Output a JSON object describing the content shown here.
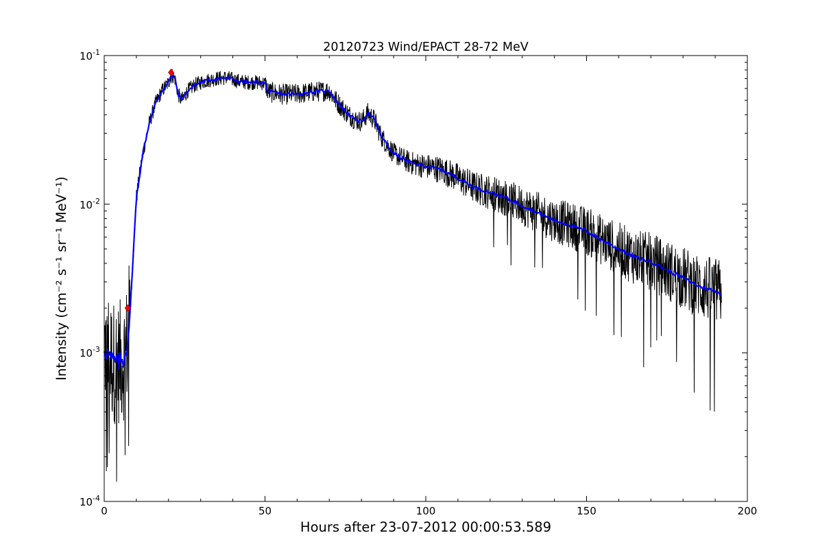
{
  "chart_data": {
    "type": "line",
    "title": "20120723 Wind/EPACT 28-72 MeV",
    "xlabel": "Hours after 23-07-2012 00:00:53.589",
    "ylabel": "Intensity (cm⁻² s⁻¹ sr⁻¹ MeV⁻¹)",
    "xlim": [
      0,
      200
    ],
    "ylim": [
      0.0001,
      0.1
    ],
    "yscale": "log",
    "grid": false,
    "x_tick_labels": [
      "0",
      "50",
      "100",
      "150",
      "200"
    ],
    "x_ticks": [
      0,
      50,
      100,
      150,
      200
    ],
    "y_ticks": [
      0.0001,
      0.001,
      0.01,
      0.1
    ],
    "y_tick_labels": [
      {
        "base": "10",
        "exp": "-4"
      },
      {
        "base": "10",
        "exp": "-3"
      },
      {
        "base": "10",
        "exp": "-2"
      },
      {
        "base": "10",
        "exp": "-1"
      }
    ],
    "series": [
      {
        "style": "raw",
        "color": "#000000",
        "x": [
          0,
          2,
          4,
          6,
          7,
          8,
          9,
          10,
          12,
          14,
          16,
          18,
          20,
          21,
          22,
          23,
          24,
          26,
          28,
          30,
          32,
          35,
          38,
          40,
          42,
          45,
          48,
          50,
          51,
          55,
          60,
          65,
          70,
          72,
          75,
          78,
          80,
          82,
          84,
          86,
          88,
          90,
          95,
          100,
          105,
          110,
          115,
          120,
          125,
          130,
          135,
          140,
          145,
          150,
          155,
          160,
          165,
          170,
          175,
          180,
          185,
          190,
          192
        ],
        "y": [
          0.0011,
          0.0009,
          0.00085,
          0.0009,
          0.0011,
          0.0018,
          0.0045,
          0.011,
          0.022,
          0.035,
          0.048,
          0.058,
          0.066,
          0.074,
          0.07,
          0.055,
          0.05,
          0.058,
          0.063,
          0.066,
          0.068,
          0.07,
          0.071,
          0.069,
          0.067,
          0.066,
          0.066,
          0.065,
          0.057,
          0.055,
          0.055,
          0.057,
          0.058,
          0.05,
          0.042,
          0.037,
          0.036,
          0.041,
          0.037,
          0.029,
          0.025,
          0.022,
          0.019,
          0.018,
          0.017,
          0.015,
          0.013,
          0.012,
          0.011,
          0.0098,
          0.0087,
          0.0078,
          0.0072,
          0.0066,
          0.0057,
          0.005,
          0.0044,
          0.0041,
          0.0036,
          0.0032,
          0.0028,
          0.0026,
          0.0025
        ]
      },
      {
        "style": "smoothed",
        "color": "#0000ff",
        "x": [
          0,
          2,
          4,
          6,
          7,
          8,
          9,
          10,
          12,
          14,
          16,
          18,
          20,
          21,
          22,
          23,
          24,
          26,
          28,
          30,
          32,
          35,
          38,
          40,
          42,
          45,
          48,
          50,
          51,
          55,
          60,
          65,
          70,
          72,
          75,
          78,
          80,
          82,
          84,
          86,
          88,
          90,
          95,
          100,
          105,
          110,
          115,
          120,
          125,
          130,
          135,
          140,
          145,
          150,
          155,
          160,
          165,
          170,
          175,
          180,
          185,
          190,
          192
        ],
        "y": [
          0.0011,
          0.0009,
          0.00085,
          0.0009,
          0.0011,
          0.0018,
          0.0045,
          0.011,
          0.022,
          0.035,
          0.048,
          0.058,
          0.066,
          0.074,
          0.07,
          0.055,
          0.05,
          0.058,
          0.063,
          0.066,
          0.068,
          0.07,
          0.071,
          0.069,
          0.067,
          0.066,
          0.066,
          0.065,
          0.057,
          0.055,
          0.055,
          0.057,
          0.058,
          0.05,
          0.042,
          0.037,
          0.036,
          0.041,
          0.037,
          0.029,
          0.025,
          0.022,
          0.019,
          0.018,
          0.017,
          0.015,
          0.013,
          0.012,
          0.011,
          0.0098,
          0.0087,
          0.0078,
          0.0072,
          0.0066,
          0.0057,
          0.005,
          0.0044,
          0.0041,
          0.0036,
          0.0032,
          0.0028,
          0.0026,
          0.0025
        ]
      }
    ],
    "markers": [
      {
        "shape": "diamond",
        "color": "#ff0000",
        "x": 7.3,
        "y": 0.002
      },
      {
        "shape": "diamond",
        "color": "#ff0000",
        "x": 20.8,
        "y": 0.077
      }
    ]
  }
}
